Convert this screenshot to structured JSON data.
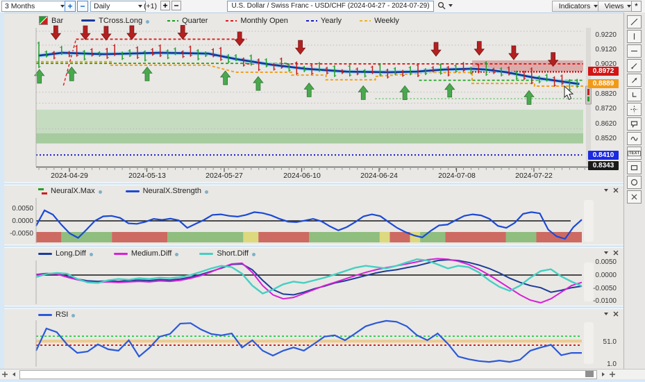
{
  "toolbar": {
    "range_value": "3 Months",
    "period_value": "Daily",
    "offset_label": "(+1)",
    "plus": "+",
    "minus": "−",
    "title": "U.S. Dollar / Swiss Franc - USD/CHF (2024-04-27 - 2024-07-29)",
    "indicators_label": "Indicators",
    "views_label": "Views",
    "star_label": "*"
  },
  "right_tools": {
    "text_label": "TEXT"
  },
  "main_chart": {
    "legend": [
      {
        "label": "Bar"
      },
      {
        "label": "TCross.Long"
      },
      {
        "label": "Quarter"
      },
      {
        "label": "Monthly Open"
      },
      {
        "label": "Yearly"
      },
      {
        "label": "Weekly"
      }
    ],
    "price_labels": [
      {
        "value": "0.9220",
        "type": "plain"
      },
      {
        "value": "0.9120",
        "type": "plain"
      },
      {
        "value": "0.9020",
        "type": "plain"
      },
      {
        "value": "0.8972",
        "type": "badge",
        "color": "#d31414"
      },
      {
        "value": "0.8889",
        "type": "badge",
        "color": "#f29a18"
      },
      {
        "value": "0.8820",
        "type": "plain"
      },
      {
        "value": "0.8720",
        "type": "plain"
      },
      {
        "value": "0.8620",
        "type": "plain"
      },
      {
        "value": "0.8520",
        "type": "plain"
      },
      {
        "value": "0.8410",
        "type": "badge",
        "color": "#1c2ae0"
      },
      {
        "value": "0.8343",
        "type": "badge",
        "color": "#1a1a1a"
      }
    ],
    "dates": [
      "2024-04-29",
      "2024-05-13",
      "2024-05-27",
      "2024-06-10",
      "2024-06-24",
      "2024-07-08",
      "2024-07-22"
    ]
  },
  "panel_neural": {
    "legend": [
      {
        "label": "NeuralX.Max"
      },
      {
        "label": "NeuralX.Strength"
      }
    ],
    "axis": [
      "0.0050",
      "0.0000",
      "-0.0050"
    ]
  },
  "panel_diff": {
    "legend": [
      {
        "label": "Long.Diff"
      },
      {
        "label": "Medium.Diff"
      },
      {
        "label": "Short.Diff"
      }
    ],
    "axis": [
      "0.0050",
      "0.0000",
      "-0.0050",
      "-0.0100"
    ]
  },
  "panel_rsi": {
    "legend": [
      {
        "label": "RSI"
      }
    ],
    "axis": [
      "51.0",
      "1.0"
    ]
  },
  "chart_data": {
    "type": "multi-panel financial chart",
    "symbol": "USD/CHF",
    "period": "Daily, 2024-04-27 to 2024-07-29",
    "main": {
      "price_range": [
        0.8343,
        0.9253
      ],
      "tcross": [
        [
          0.004,
          0.908
        ],
        [
          0.048,
          0.9099
        ],
        [
          0.124,
          0.909
        ],
        [
          0.226,
          0.9099
        ],
        [
          0.315,
          0.9094
        ],
        [
          0.365,
          0.9057
        ],
        [
          0.429,
          0.902
        ],
        [
          0.492,
          0.8992
        ],
        [
          0.568,
          0.8973
        ],
        [
          0.645,
          0.8969
        ],
        [
          0.695,
          0.8973
        ],
        [
          0.746,
          0.8987
        ],
        [
          0.797,
          0.8992
        ],
        [
          0.822,
          0.8987
        ],
        [
          0.86,
          0.8969
        ],
        [
          0.911,
          0.8932
        ],
        [
          0.949,
          0.8913
        ],
        [
          0.993,
          0.889
        ]
      ],
      "weekly": [
        [
          0,
          0.9039
        ],
        [
          0.137,
          0.9039
        ],
        [
          0.137,
          0.9016
        ],
        [
          0.315,
          0.9016
        ],
        [
          0.365,
          0.8969
        ],
        [
          0.467,
          0.8969
        ],
        [
          0.467,
          0.895
        ],
        [
          0.53,
          0.895
        ],
        [
          0.53,
          0.8918
        ],
        [
          0.62,
          0.8918
        ],
        [
          0.62,
          0.8941
        ],
        [
          0.72,
          0.8967
        ],
        [
          0.797,
          0.8967
        ],
        [
          0.797,
          0.8894
        ],
        [
          0.911,
          0.8894
        ],
        [
          0.911,
          0.8876
        ],
        [
          1,
          0.8876
        ]
      ],
      "levels": [
        {
          "x1": 0.05,
          "x2": 0.073,
          "p1": 0.888,
          "p2": 0.919,
          "c": "#e01818",
          "d": "4,3",
          "w": 1.4
        },
        {
          "x1": 0.073,
          "x2": 0.385,
          "p1": 0.919,
          "p2": 0.919,
          "c": "#e01818",
          "d": "4,3",
          "w": 1.8
        },
        {
          "x1": 0.385,
          "x2": 1,
          "p1": 0.9025,
          "p2": 0.9025,
          "c": "#e01818",
          "d": "4,3",
          "w": 1.8
        },
        {
          "x1": 0.797,
          "x2": 1,
          "p1": 0.8972,
          "p2": 0.8972,
          "c": "#cc1010",
          "d": "2,2",
          "w": 2.5
        },
        {
          "x1": 0,
          "x2": 0.46,
          "p1": 0.9028,
          "p2": 0.9028,
          "c": "#18a018",
          "d": "4,3",
          "w": 1.8
        },
        {
          "x1": 0.7,
          "x2": 1,
          "p1": 0.8915,
          "p2": 0.8915,
          "c": "#18a018",
          "d": "4,3",
          "w": 1.6
        },
        {
          "x1": 0.62,
          "x2": 1,
          "p1": 0.8792,
          "p2": 0.8792,
          "c": "#4cb34c",
          "d": "2,3",
          "w": 1.1
        },
        {
          "x1": 0,
          "x2": 0.998,
          "p1": 0.8415,
          "p2": 0.8415,
          "c": "#1818cc",
          "d": "2,3",
          "w": 2
        }
      ],
      "gridlines": [
        0.9243,
        0.915,
        0.8835,
        0.8762,
        0.859
      ],
      "bands": [
        {
          "x1": 0,
          "x2": 1,
          "p1": 0.8718,
          "p2": 0.856,
          "c": "#c5dcc0"
        },
        {
          "x1": 0,
          "x2": 1,
          "p1": 0.856,
          "p2": 0.8492,
          "c": "#a6cb9e"
        },
        {
          "x1": 0.797,
          "x2": 1,
          "p1": 0.9048,
          "p2": 0.8974,
          "c": "rgba(205,100,100,0.45)"
        }
      ],
      "bars": [
        [
          20,
          18,
          1
        ],
        [
          6,
          4,
          1
        ],
        [
          4,
          8,
          0
        ],
        [
          10,
          3,
          1
        ],
        [
          3,
          6,
          0
        ],
        [
          12,
          5,
          0
        ],
        [
          5,
          10,
          1
        ],
        [
          8,
          4,
          0
        ],
        [
          4,
          4,
          1
        ],
        [
          9,
          7,
          0
        ],
        [
          14,
          3,
          0
        ],
        [
          3,
          9,
          1
        ],
        [
          6,
          5,
          1
        ],
        [
          10,
          8,
          0
        ],
        [
          4,
          12,
          1
        ],
        [
          7,
          4,
          0
        ],
        [
          12,
          6,
          0
        ],
        [
          5,
          9,
          1
        ],
        [
          8,
          3,
          1
        ],
        [
          4,
          7,
          0
        ],
        [
          11,
          5,
          0
        ],
        [
          6,
          10,
          1
        ],
        [
          3,
          5,
          1
        ],
        [
          9,
          4,
          0
        ],
        [
          13,
          7,
          0
        ],
        [
          5,
          8,
          1
        ],
        [
          7,
          3,
          1
        ],
        [
          4,
          9,
          0
        ],
        [
          10,
          6,
          1
        ],
        [
          6,
          12,
          0
        ],
        [
          8,
          5,
          1
        ],
        [
          3,
          8,
          0
        ],
        [
          12,
          4,
          0
        ],
        [
          5,
          7,
          1
        ],
        [
          9,
          10,
          0
        ],
        [
          4,
          5,
          1
        ],
        [
          7,
          8,
          0
        ],
        [
          11,
          3,
          1
        ],
        [
          5,
          6,
          0
        ],
        [
          8,
          9,
          1
        ],
        [
          3,
          4,
          0
        ],
        [
          10,
          7,
          1
        ],
        [
          6,
          5,
          0
        ],
        [
          4,
          8,
          1
        ],
        [
          9,
          3,
          0
        ],
        [
          12,
          6,
          1
        ],
        [
          5,
          9,
          0
        ],
        [
          7,
          4,
          1
        ],
        [
          3,
          7,
          0
        ],
        [
          8,
          5,
          1
        ],
        [
          11,
          8,
          0
        ],
        [
          4,
          6,
          1
        ],
        [
          6,
          3,
          0
        ],
        [
          9,
          7,
          1
        ],
        [
          5,
          10,
          0
        ],
        [
          7,
          5,
          1
        ],
        [
          10,
          4,
          0
        ],
        [
          3,
          8,
          1
        ],
        [
          8,
          6,
          0
        ],
        [
          12,
          9,
          1
        ],
        [
          4,
          5,
          0
        ],
        [
          6,
          7,
          1
        ],
        [
          9,
          4,
          0
        ],
        [
          5,
          8,
          1
        ],
        [
          7,
          6,
          0
        ],
        [
          14,
          10,
          0
        ],
        [
          4,
          7,
          1
        ],
        [
          8,
          3,
          1
        ],
        [
          6,
          9,
          0
        ],
        [
          10,
          5,
          0
        ],
        [
          5,
          12,
          1
        ],
        [
          7,
          6,
          1
        ]
      ],
      "up_arrows": [
        0.006,
        0.065,
        0.203,
        0.346,
        0.406,
        0.499,
        0.598,
        0.674,
        0.756,
        0.901
      ],
      "down_arrows": [
        0.036,
        0.09,
        0.128,
        0.175,
        0.268,
        0.372,
        0.483,
        0.731,
        0.81,
        0.873,
        0.945
      ]
    },
    "neural": {
      "units": "0.0001",
      "strength": [
        -20,
        42,
        25,
        -15,
        -50,
        -68,
        -35,
        0,
        18,
        20,
        12,
        -10,
        -12,
        -4,
        8,
        4,
        9,
        2,
        -28,
        -12,
        4,
        24,
        26,
        20,
        17,
        24,
        35,
        31,
        22,
        8,
        -3,
        -5,
        1,
        8,
        -2,
        -22,
        -38,
        -25,
        -5,
        18,
        26,
        19,
        -5,
        -28,
        -45,
        -58,
        -66,
        -40,
        -18,
        -15,
        3,
        20,
        26,
        22,
        8,
        -20,
        -28,
        -8,
        28,
        35,
        30,
        -35,
        -62,
        -72,
        -25,
        5
      ],
      "strip": [
        [
          "r",
          5
        ],
        [
          "g",
          10
        ],
        [
          "r",
          11
        ],
        [
          "g",
          15
        ],
        [
          "y",
          3
        ],
        [
          "r",
          10
        ],
        [
          "g",
          14
        ],
        [
          "y",
          2
        ],
        [
          "r",
          4
        ],
        [
          "y",
          2
        ],
        [
          "g",
          5
        ],
        [
          "r",
          12
        ],
        [
          "g",
          6
        ],
        [
          "r",
          9
        ]
      ]
    },
    "diff": {
      "units": "0.0001",
      "long": [
        2,
        6,
        5,
        -5,
        -15,
        -22,
        -24,
        -22,
        -24,
        -21,
        -19,
        -21,
        -17,
        -19,
        -15,
        -8,
        2,
        14,
        26,
        40,
        42,
        20,
        -20,
        -55,
        -72,
        -75,
        -65,
        -52,
        -42,
        -30,
        -22,
        -12,
        -2,
        8,
        15,
        20,
        28,
        35,
        45,
        55,
        58,
        55,
        48,
        38,
        25,
        8,
        -12,
        -28,
        -40,
        -48,
        -65,
        -58,
        -48,
        -42
      ],
      "medium": [
        0,
        4,
        4,
        -8,
        -18,
        -26,
        -28,
        -26,
        -28,
        -26,
        -24,
        -26,
        -22,
        -24,
        -20,
        -12,
        -2,
        12,
        28,
        42,
        45,
        10,
        -40,
        -75,
        -90,
        -85,
        -70,
        -55,
        -40,
        -28,
        -15,
        -2,
        10,
        20,
        28,
        35,
        42,
        50,
        58,
        62,
        60,
        52,
        40,
        22,
        0,
        -25,
        -50,
        -75,
        -95,
        -105,
        -90,
        -65,
        -40,
        -28
      ],
      "short": [
        -8,
        4,
        8,
        5,
        -15,
        -28,
        -30,
        -20,
        -15,
        -18,
        -12,
        -15,
        -10,
        -12,
        -8,
        0,
        12,
        25,
        35,
        30,
        5,
        -40,
        -70,
        -55,
        -35,
        -25,
        -30,
        -20,
        -10,
        2,
        15,
        28,
        35,
        30,
        25,
        35,
        48,
        60,
        55,
        40,
        25,
        35,
        30,
        10,
        -20,
        -45,
        -60,
        -40,
        -10,
        15,
        22,
        -5,
        -25,
        -42
      ]
    },
    "rsi": {
      "values": [
        31,
        80,
        72,
        45,
        26,
        29,
        45,
        34,
        31,
        54,
        18,
        37,
        62,
        68,
        91,
        92,
        78,
        68,
        65,
        69,
        38,
        54,
        31,
        20,
        31,
        38,
        31,
        46,
        62,
        65,
        54,
        69,
        85,
        92,
        97,
        95,
        85,
        65,
        54,
        69,
        46,
        18,
        12,
        8,
        6,
        9,
        6,
        11,
        31,
        38,
        44,
        21,
        26,
        26
      ],
      "ref": {
        "green": 63,
        "band": 52,
        "red": 43
      }
    }
  }
}
